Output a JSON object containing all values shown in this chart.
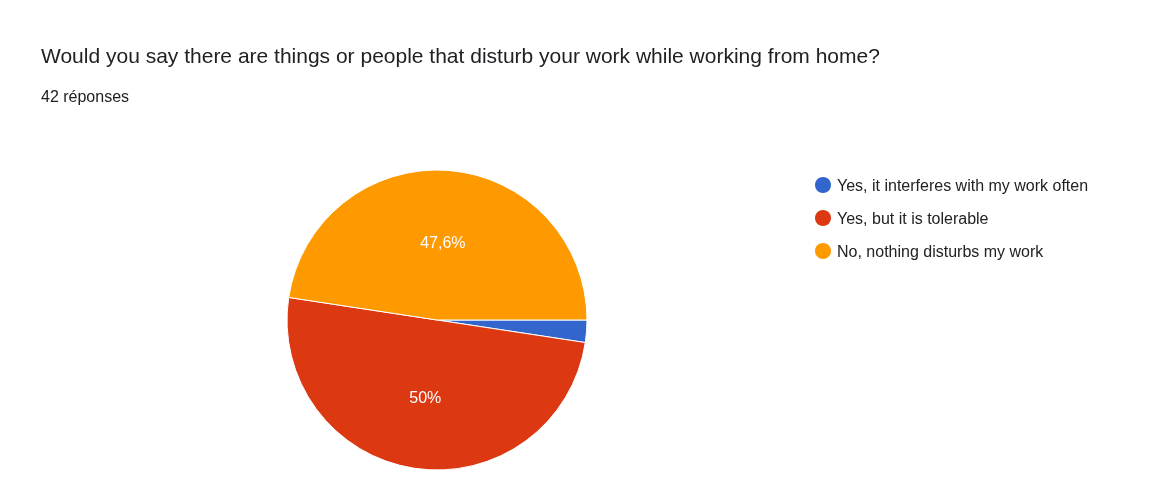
{
  "chart_data": {
    "type": "pie",
    "title": "Would you say there are things or people that disturb your work while working from home?",
    "subtitle": "42 réponses",
    "categories": [
      "Yes, it interferes with my work often",
      "Yes, but it is tolerable",
      "No, nothing disturbs my work"
    ],
    "values": [
      2.4,
      50,
      47.6
    ],
    "colors": [
      "#3366cc",
      "#dc3912",
      "#ff9900"
    ],
    "value_labels": [
      null,
      "50%",
      "47,6%"
    ],
    "legend": "top right"
  }
}
